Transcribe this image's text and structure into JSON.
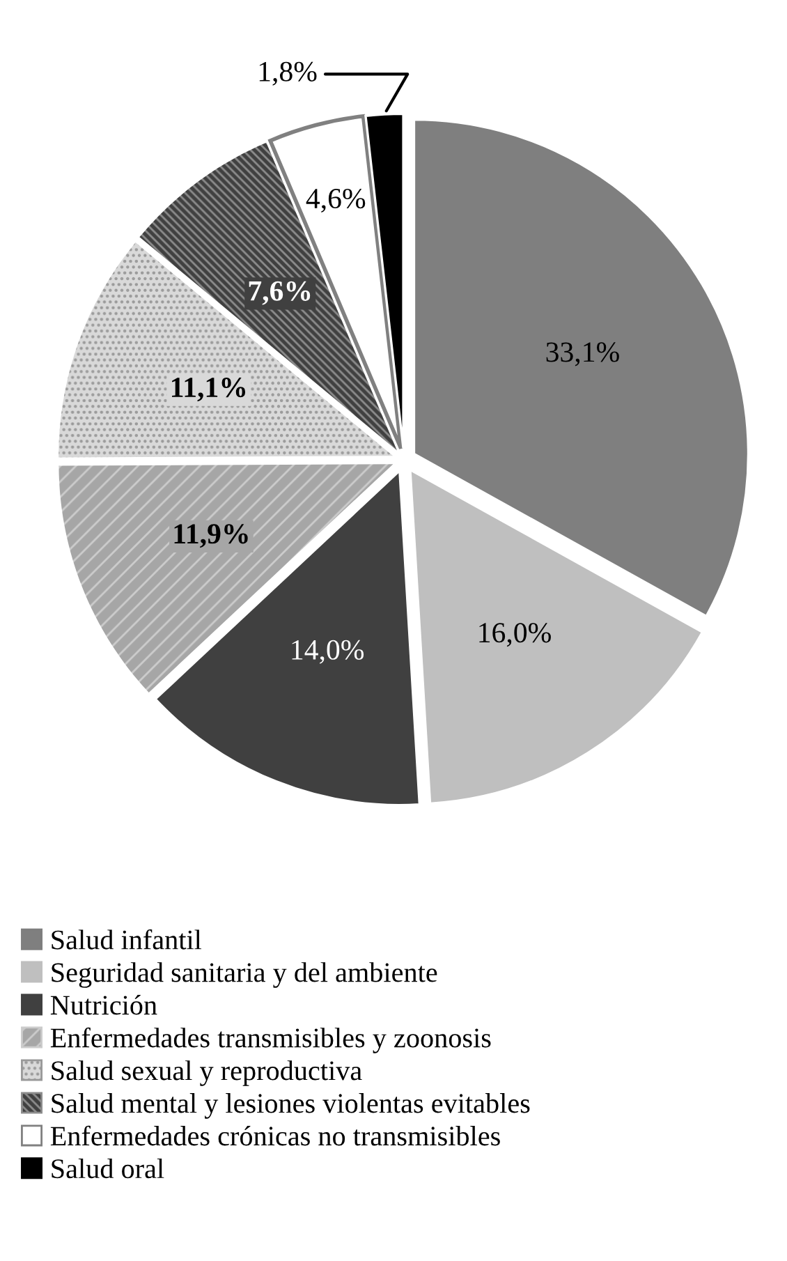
{
  "chart_data": {
    "type": "pie",
    "categories": [
      "Salud infantil",
      "Seguridad sanitaria y del ambiente",
      "Nutrición",
      "Enfermedades transmisibles y zoonosis",
      "Salud sexual y reproductiva",
      "Salud mental y lesiones violentas evitables",
      "Enfermedades crónicas no transmisibles",
      "Salud oral"
    ],
    "values": [
      33.1,
      16.0,
      14.0,
      11.9,
      11.1,
      7.6,
      4.6,
      1.8
    ],
    "value_labels": [
      "33,1%",
      "16,0%",
      "14,0%",
      "11,9%",
      "11,1%",
      "7,6%",
      "4,6%",
      "1,8%"
    ],
    "colors": [
      "#7f7f7f",
      "#bfbfbf",
      "#404040",
      "#a6a6a6",
      "#d9d9d9",
      "#404040",
      "#ffffff",
      "#000000"
    ],
    "legend": "bottom left"
  }
}
